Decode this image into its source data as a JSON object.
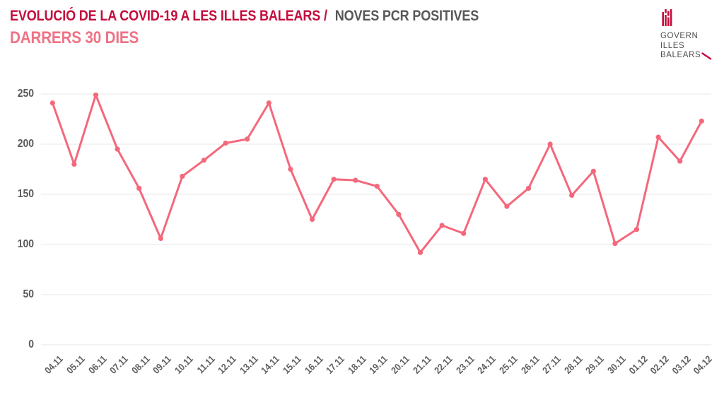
{
  "header": {
    "title_primary": "EVOLUCIÓ DE LA COVID-19 A LES ILLES BALEARS /",
    "title_secondary": "NOVES PCR POSITIVES",
    "subtitle": "DARRERS 30 DIES",
    "logo_lines": [
      "GOVERN",
      "ILLES",
      "BALEARS"
    ]
  },
  "colors": {
    "brand_red": "#c40d3c",
    "subtitle_pink": "#ee7386",
    "line_pink": "#f4687c",
    "title_gray": "#58585a",
    "axis_gray": "#5d5e60",
    "gridline": "#ececec"
  },
  "chart_data": {
    "type": "line",
    "title": "EVOLUCIÓ DE LA COVID-19 A LES ILLES BALEARS / NOVES PCR POSITIVES — DARRERS 30 DIES",
    "x": [
      "04.11",
      "05.11",
      "06.11",
      "07.11",
      "08.11",
      "09.11",
      "10.11",
      "11.11",
      "12.11",
      "13.11",
      "14.11",
      "15.11",
      "16.11",
      "17.11",
      "18.11",
      "19.11",
      "20.11",
      "21.11",
      "22.11",
      "23.11",
      "24.11",
      "25.11",
      "26.11",
      "27.11",
      "28.11",
      "29.11",
      "30.11",
      "01.12",
      "02.12",
      "03.12",
      "04.12"
    ],
    "values": [
      241,
      180,
      249,
      195,
      156,
      106,
      168,
      184,
      201,
      205,
      241,
      175,
      125,
      165,
      164,
      158,
      130,
      92,
      119,
      111,
      165,
      138,
      156,
      200,
      149,
      173,
      101,
      115,
      207,
      183,
      223
    ],
    "xlabel": "",
    "ylabel": "",
    "ylim": [
      0,
      250
    ],
    "yticks": [
      0,
      50,
      100,
      150,
      200,
      250
    ],
    "grid": "horizontal",
    "legend": "none",
    "marker": "circle",
    "line_color": "#f4687c"
  }
}
